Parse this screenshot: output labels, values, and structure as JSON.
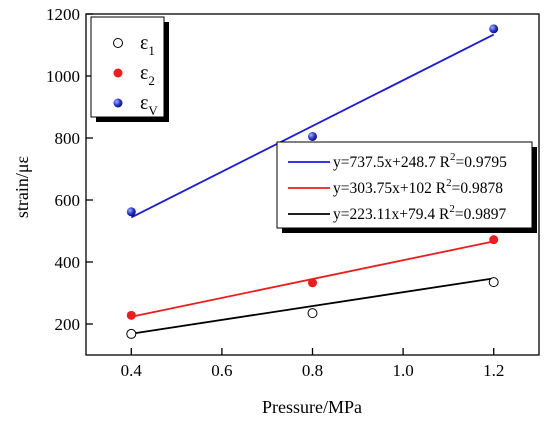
{
  "chart_data": {
    "type": "scatter",
    "xlabel": "Pressure/MPa",
    "ylabel": "strain/με",
    "xlim": [
      0.3,
      1.3
    ],
    "ylim": [
      100,
      1200
    ],
    "x_ticks": [
      "0.4",
      "0.6",
      "0.8",
      "1.0",
      "1.2"
    ],
    "y_ticks": [
      "200",
      "400",
      "600",
      "800",
      "1000",
      "1200"
    ],
    "x_tick_values": [
      0.4,
      0.6,
      0.8,
      1.0,
      1.2
    ],
    "y_tick_values": [
      200,
      400,
      600,
      800,
      1000,
      1200
    ],
    "series": [
      {
        "name": "ε1",
        "symbol": "ε",
        "subscript": "1",
        "marker": "open-circle",
        "color": "#000000",
        "x": [
          0.4,
          0.8,
          1.2
        ],
        "y": [
          168,
          235,
          335
        ],
        "fit": {
          "slope": 223.11,
          "intercept": 79.4,
          "label_main": "y=223.11x+79.4  R",
          "label_sup": "2",
          "label_tail": "=0.9897",
          "line_color": "#000000"
        }
      },
      {
        "name": "ε2",
        "symbol": "ε",
        "subscript": "2",
        "marker": "filled-circle",
        "color": "#ee1c1c",
        "x": [
          0.4,
          0.8,
          1.2
        ],
        "y": [
          228,
          333,
          472
        ],
        "fit": {
          "slope": 303.75,
          "intercept": 102,
          "label_main": "y=303.75x+102  R",
          "label_sup": "2",
          "label_tail": "=0.9878",
          "line_color": "#ee1c1c"
        }
      },
      {
        "name": "εV",
        "symbol": "ε",
        "subscript": "V",
        "marker": "filled-circle",
        "color": "#2f3ddb",
        "x": [
          0.4,
          0.8,
          1.2
        ],
        "y": [
          562,
          805,
          1152
        ],
        "fit": {
          "slope": 737.5,
          "intercept": 248.7,
          "label_main": "y=737.5x+248.7  R",
          "label_sup": "2",
          "label_tail": "=0.9795",
          "line_color": "#1a1adf"
        }
      }
    ],
    "fit_legend_order": [
      2,
      1,
      0
    ],
    "grid": false,
    "legend_placement": "top-left",
    "fit_legend_placement": "center-right"
  }
}
